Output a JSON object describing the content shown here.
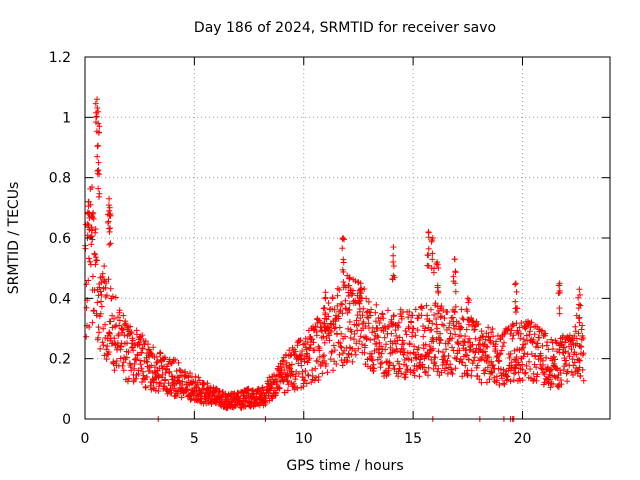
{
  "chart_data": {
    "type": "scatter",
    "title": "Day 186 of 2024, SRMTID for receiver savo",
    "xlabel": "GPS time / hours",
    "ylabel": "SRMTID / TECUs",
    "xlim": [
      0,
      24
    ],
    "ylim": [
      0,
      1.2
    ],
    "xticks": [
      0,
      5,
      10,
      15,
      20
    ],
    "xtick_labels": [
      "0",
      "5",
      "10",
      "15",
      "20"
    ],
    "yticks": [
      0,
      0.2,
      0.4,
      0.6,
      0.8,
      1.0,
      1.2
    ],
    "ytick_labels": [
      "0",
      "0.2",
      "0.4",
      "0.6",
      "0.8",
      "1",
      "1.2"
    ],
    "grid": true,
    "marker": "+",
    "color": "#ff0000",
    "series": [
      {
        "name": "savo",
        "trend": [
          [
            0.0,
            0.45
          ],
          [
            0.3,
            0.55
          ],
          [
            0.6,
            0.42
          ],
          [
            1.0,
            0.33
          ],
          [
            1.5,
            0.27
          ],
          [
            2.0,
            0.22
          ],
          [
            2.5,
            0.2
          ],
          [
            3.0,
            0.17
          ],
          [
            3.5,
            0.15
          ],
          [
            4.0,
            0.14
          ],
          [
            4.5,
            0.12
          ],
          [
            5.0,
            0.1
          ],
          [
            5.5,
            0.09
          ],
          [
            6.0,
            0.07
          ],
          [
            6.5,
            0.06
          ],
          [
            7.0,
            0.06
          ],
          [
            7.5,
            0.07
          ],
          [
            8.0,
            0.07
          ],
          [
            8.5,
            0.1
          ],
          [
            9.0,
            0.14
          ],
          [
            9.5,
            0.17
          ],
          [
            10.0,
            0.19
          ],
          [
            10.5,
            0.22
          ],
          [
            11.0,
            0.26
          ],
          [
            11.5,
            0.3
          ],
          [
            12.0,
            0.33
          ],
          [
            12.5,
            0.33
          ],
          [
            13.0,
            0.28
          ],
          [
            13.5,
            0.26
          ],
          [
            14.0,
            0.25
          ],
          [
            14.5,
            0.25
          ],
          [
            15.0,
            0.25
          ],
          [
            15.5,
            0.26
          ],
          [
            16.0,
            0.27
          ],
          [
            16.5,
            0.25
          ],
          [
            17.0,
            0.26
          ],
          [
            17.5,
            0.24
          ],
          [
            18.0,
            0.22
          ],
          [
            18.5,
            0.21
          ],
          [
            19.0,
            0.2
          ],
          [
            19.5,
            0.22
          ],
          [
            20.0,
            0.23
          ],
          [
            20.5,
            0.22
          ],
          [
            21.0,
            0.2
          ],
          [
            21.5,
            0.18
          ],
          [
            22.0,
            0.2
          ],
          [
            22.5,
            0.24
          ],
          [
            22.8,
            0.22
          ]
        ],
        "bursts": [
          [
            0.15,
            0.72
          ],
          [
            0.35,
            0.68
          ],
          [
            0.55,
            1.06
          ],
          [
            0.6,
            0.98
          ],
          [
            0.62,
            0.85
          ],
          [
            1.1,
            0.73
          ],
          [
            1.15,
            0.68
          ],
          [
            11.8,
            0.6
          ],
          [
            12.1,
            0.47
          ],
          [
            14.1,
            0.57
          ],
          [
            15.7,
            0.62
          ],
          [
            15.9,
            0.6
          ],
          [
            16.1,
            0.52
          ],
          [
            16.9,
            0.53
          ],
          [
            19.7,
            0.45
          ],
          [
            21.7,
            0.45
          ],
          [
            22.6,
            0.43
          ],
          [
            11.0,
            0.42
          ],
          [
            12.6,
            0.45
          ],
          [
            17.5,
            0.4
          ]
        ],
        "zeros": [
          3.35,
          8.25,
          15.9,
          18.05,
          19.15,
          19.45,
          19.55,
          19.6
        ]
      }
    ]
  }
}
